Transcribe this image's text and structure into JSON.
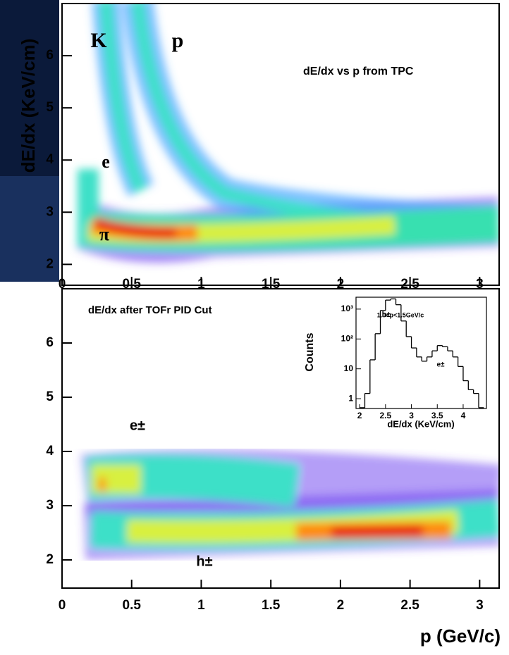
{
  "chart_data": [
    {
      "type": "heatmap",
      "title": "dE/dx vs p from TPC",
      "y_label": "dE/dx (KeV/cm)",
      "annotations": [
        "K",
        "p",
        "e",
        "π"
      ],
      "xlim": [
        0,
        3.14
      ],
      "xticks": [
        0,
        0.5,
        1,
        1.5,
        2,
        2.5,
        3
      ],
      "ylim": [
        1.6,
        7
      ],
      "yticks": [
        2,
        3,
        4,
        5,
        6
      ]
    },
    {
      "type": "heatmap",
      "title": "dE/dx after TOFr PID Cut",
      "x_label": "p (GeV/c)",
      "annotations": [
        "e±",
        "h±"
      ],
      "xlim": [
        0,
        3.14
      ],
      "xticks": [
        0,
        0.5,
        1,
        1.5,
        2,
        2.5,
        3
      ],
      "ylim": [
        1.48,
        7
      ],
      "yticks": [
        2,
        3,
        4,
        5,
        6
      ]
    },
    {
      "type": "histogram",
      "y_label": "Counts",
      "x_label": "dE/dx (KeV/cm)",
      "annotations": [
        "h±",
        "1.0<p<1.5GeV/c",
        "e±"
      ],
      "bins": [
        2.0,
        2.1,
        2.2,
        2.3,
        2.4,
        2.5,
        2.6,
        2.7,
        2.8,
        2.9,
        3.0,
        3.1,
        3.2,
        3.3,
        3.4,
        3.5,
        3.6,
        3.7,
        3.8,
        3.9,
        4.0,
        4.1,
        4.2,
        4.3,
        4.4
      ],
      "values": [
        0.5,
        1.5,
        20,
        150,
        900,
        2000,
        2200,
        1400,
        400,
        120,
        50,
        25,
        18,
        25,
        40,
        60,
        55,
        40,
        25,
        12,
        4,
        2,
        1.5,
        0.5
      ],
      "color": "#000000",
      "log_y": true,
      "xlim": [
        1.93,
        4.45
      ],
      "xticks": [
        2,
        2.5,
        3,
        3.5,
        4
      ],
      "ylim": [
        0.47,
        2500
      ],
      "yticks": [
        {
          "value": 1000,
          "label": "10³"
        },
        {
          "value": 100,
          "label": "10²"
        },
        10,
        1
      ]
    }
  ]
}
